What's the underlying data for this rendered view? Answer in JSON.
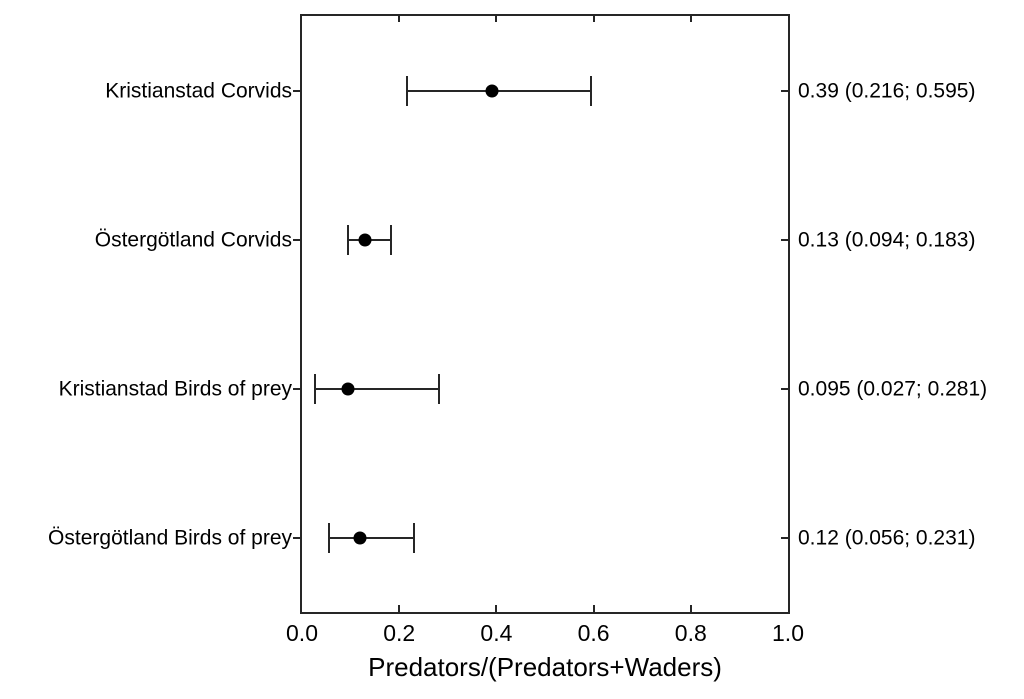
{
  "chart_data": {
    "type": "scatter",
    "subtype": "forest-plot-with-ci",
    "title": "",
    "xlabel": "Predators/(Predators+Waders)",
    "ylabel": "",
    "xlim": [
      0.0,
      1.0
    ],
    "xticks": [
      "0.0",
      "0.2",
      "0.4",
      "0.6",
      "0.8",
      "1.0"
    ],
    "xtick_values": [
      0.0,
      0.2,
      0.4,
      0.6,
      0.8,
      1.0
    ],
    "grid": false,
    "legend": "none",
    "rows": [
      {
        "label": "Kristianstad Corvids",
        "value": 0.39,
        "ci_low": 0.216,
        "ci_high": 0.595,
        "value_text": "0.39 (0.216; 0.595)"
      },
      {
        "label": "Östergötland Corvids",
        "value": 0.13,
        "ci_low": 0.094,
        "ci_high": 0.183,
        "value_text": "0.13 (0.094; 0.183)"
      },
      {
        "label": "Kristianstad Birds of prey",
        "value": 0.095,
        "ci_low": 0.027,
        "ci_high": 0.281,
        "value_text": "0.095 (0.027; 0.281)"
      },
      {
        "label": "Östergötland Birds of prey",
        "value": 0.12,
        "ci_low": 0.056,
        "ci_high": 0.231,
        "value_text": "0.12 (0.056; 0.231)"
      }
    ],
    "colors": {
      "line": "#262626",
      "point": "#000000",
      "text": "#000000",
      "background": "#ffffff"
    }
  }
}
